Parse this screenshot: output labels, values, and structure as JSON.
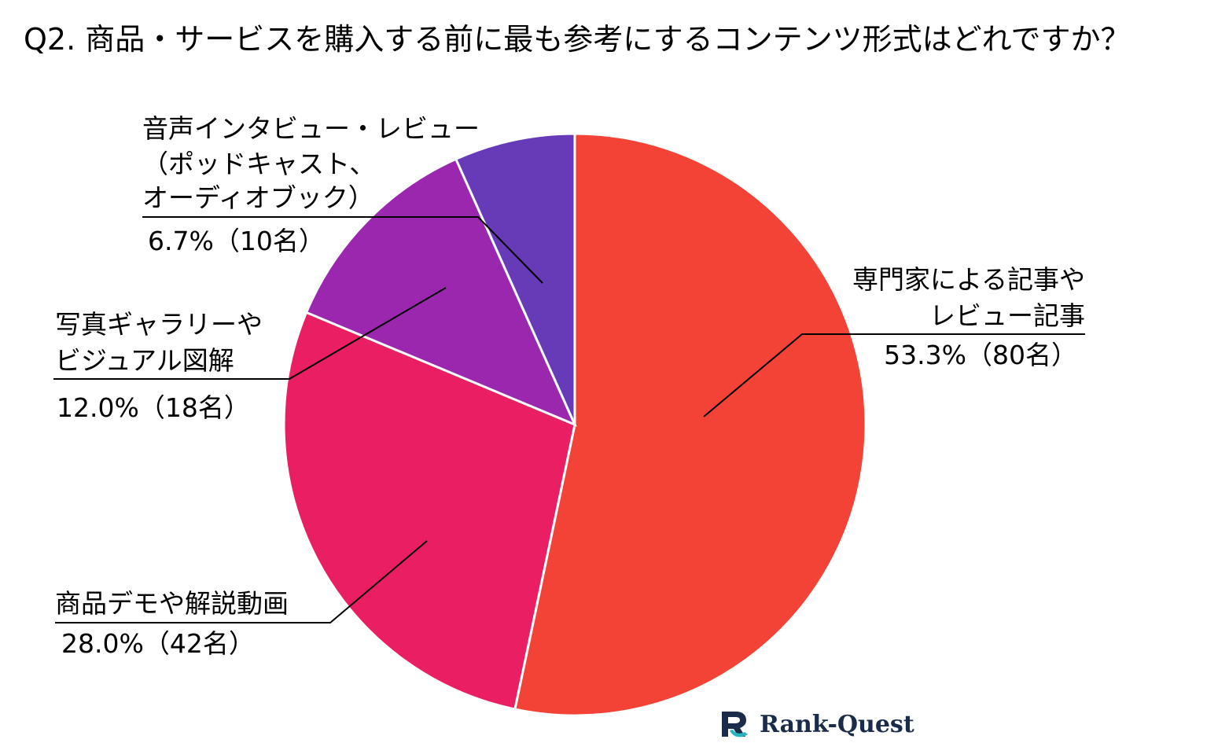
{
  "title": "Q2. 商品・サービスを購入する前に最も参考にするコンテンツ形式はどれですか？",
  "brand": {
    "name": "Rank-Quest"
  },
  "chart_data": {
    "type": "pie",
    "title": "Q2. 商品・サービスを購入する前に最も参考にするコンテンツ形式はどれですか？",
    "start_angle": "12 o'clock",
    "direction": "clockwise",
    "slices": [
      {
        "name": "専門家による記事やレビュー記事",
        "label_lines": [
          "専門家による記事や",
          "レビュー記事"
        ],
        "value_label": "53.3%（80名）",
        "percent": 53.3,
        "count": 80,
        "color": "#f24336"
      },
      {
        "name": "商品デモや解説動画",
        "label_lines": [
          "商品デモや解説動画"
        ],
        "value_label": "28.0%（42名）",
        "percent": 28.0,
        "count": 42,
        "color": "#e91e63"
      },
      {
        "name": "写真ギャラリーやビジュアル図解",
        "label_lines": [
          "写真ギャラリーや",
          "ビジュアル図解"
        ],
        "value_label": "12.0%（18名）",
        "percent": 12.0,
        "count": 18,
        "color": "#9b27af"
      },
      {
        "name": "音声インタビュー・レビュー（ポッドキャスト、オーディオブック）",
        "label_lines": [
          "音声インタビュー・レビュー",
          "（ポッドキャスト、",
          "オーディオブック）"
        ],
        "value_label": "6.7%（10名）",
        "percent": 6.7,
        "count": 10,
        "color": "#673ab7"
      }
    ]
  }
}
